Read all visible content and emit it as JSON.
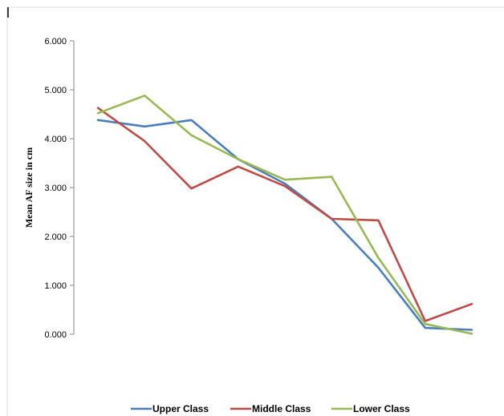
{
  "chart_data": {
    "type": "line",
    "title": "",
    "xlabel": "",
    "ylabel": "Mean AF size in cm",
    "ylim": [
      0,
      6
    ],
    "yticks": [
      "0.000",
      "1.000",
      "2.000",
      "3.000",
      "4.000",
      "5.000",
      "6.000"
    ],
    "x": [
      1,
      2,
      3,
      4,
      5,
      6,
      7,
      8,
      9
    ],
    "grid": false,
    "legend_position": "bottom",
    "series": [
      {
        "name": "Upper Class",
        "color": "#4a7ebb",
        "values": [
          4.38,
          4.25,
          4.38,
          3.58,
          3.08,
          2.36,
          1.36,
          0.13,
          0.09
        ]
      },
      {
        "name": "Middle Class",
        "color": "#be4b48",
        "values": [
          4.63,
          3.95,
          2.98,
          3.43,
          3.03,
          2.36,
          2.33,
          0.27,
          0.62
        ]
      },
      {
        "name": "Lower Class",
        "color": "#98b954",
        "values": [
          4.52,
          4.88,
          4.07,
          3.58,
          3.16,
          3.22,
          1.56,
          0.21,
          0.01
        ]
      }
    ]
  }
}
